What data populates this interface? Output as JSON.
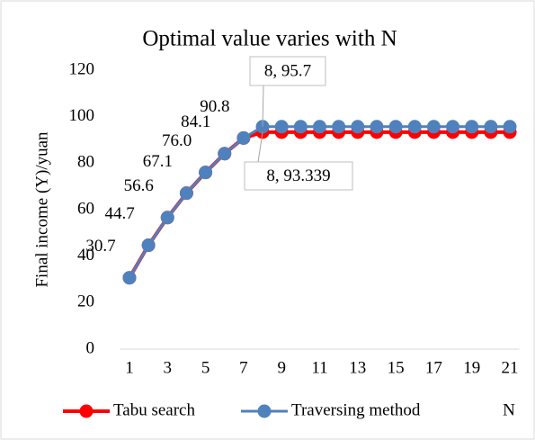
{
  "chart_data": {
    "type": "line",
    "title": "Optimal value varies with N",
    "y_label": "Final income (Y)/yuan",
    "x_label": "N",
    "categories": [
      "1",
      null,
      "3",
      null,
      "5",
      null,
      "7",
      null,
      "9",
      null,
      "11",
      null,
      "13",
      null,
      "15",
      null,
      "17",
      null,
      "19",
      null,
      "21"
    ],
    "series": [
      {
        "name": "Tabu search",
        "color": "#ff0000",
        "values": [
          30.7,
          44.7,
          56.6,
          67.1,
          76.0,
          84.1,
          90.8,
          93.339,
          93.339,
          93.339,
          93.339,
          93.339,
          93.339,
          93.339,
          93.339,
          93.339,
          93.339,
          93.339,
          93.339,
          93.339,
          93.339
        ]
      },
      {
        "name": "Traversing method",
        "color": "#4f81bd",
        "values": [
          30.7,
          44.7,
          56.6,
          67.1,
          76.0,
          84.1,
          90.8,
          95.7,
          95.7,
          95.7,
          95.7,
          95.7,
          95.7,
          95.7,
          95.7,
          95.7,
          95.7,
          95.7,
          95.7,
          95.7,
          95.7
        ],
        "value_labels": [
          "30.7",
          "44.7",
          "56.6",
          "67.1",
          "76.0",
          "84.1",
          "90.8",
          null,
          null,
          null,
          null,
          null,
          null,
          null,
          null,
          null,
          null,
          null,
          null,
          null,
          null
        ]
      }
    ],
    "annotations": [
      "8, 95.7",
      "8, 93.339"
    ],
    "ylim": [
      0,
      120
    ],
    "yticks": [
      0,
      20,
      40,
      60,
      80,
      100,
      120
    ],
    "grid": false,
    "legend": "bottom"
  }
}
